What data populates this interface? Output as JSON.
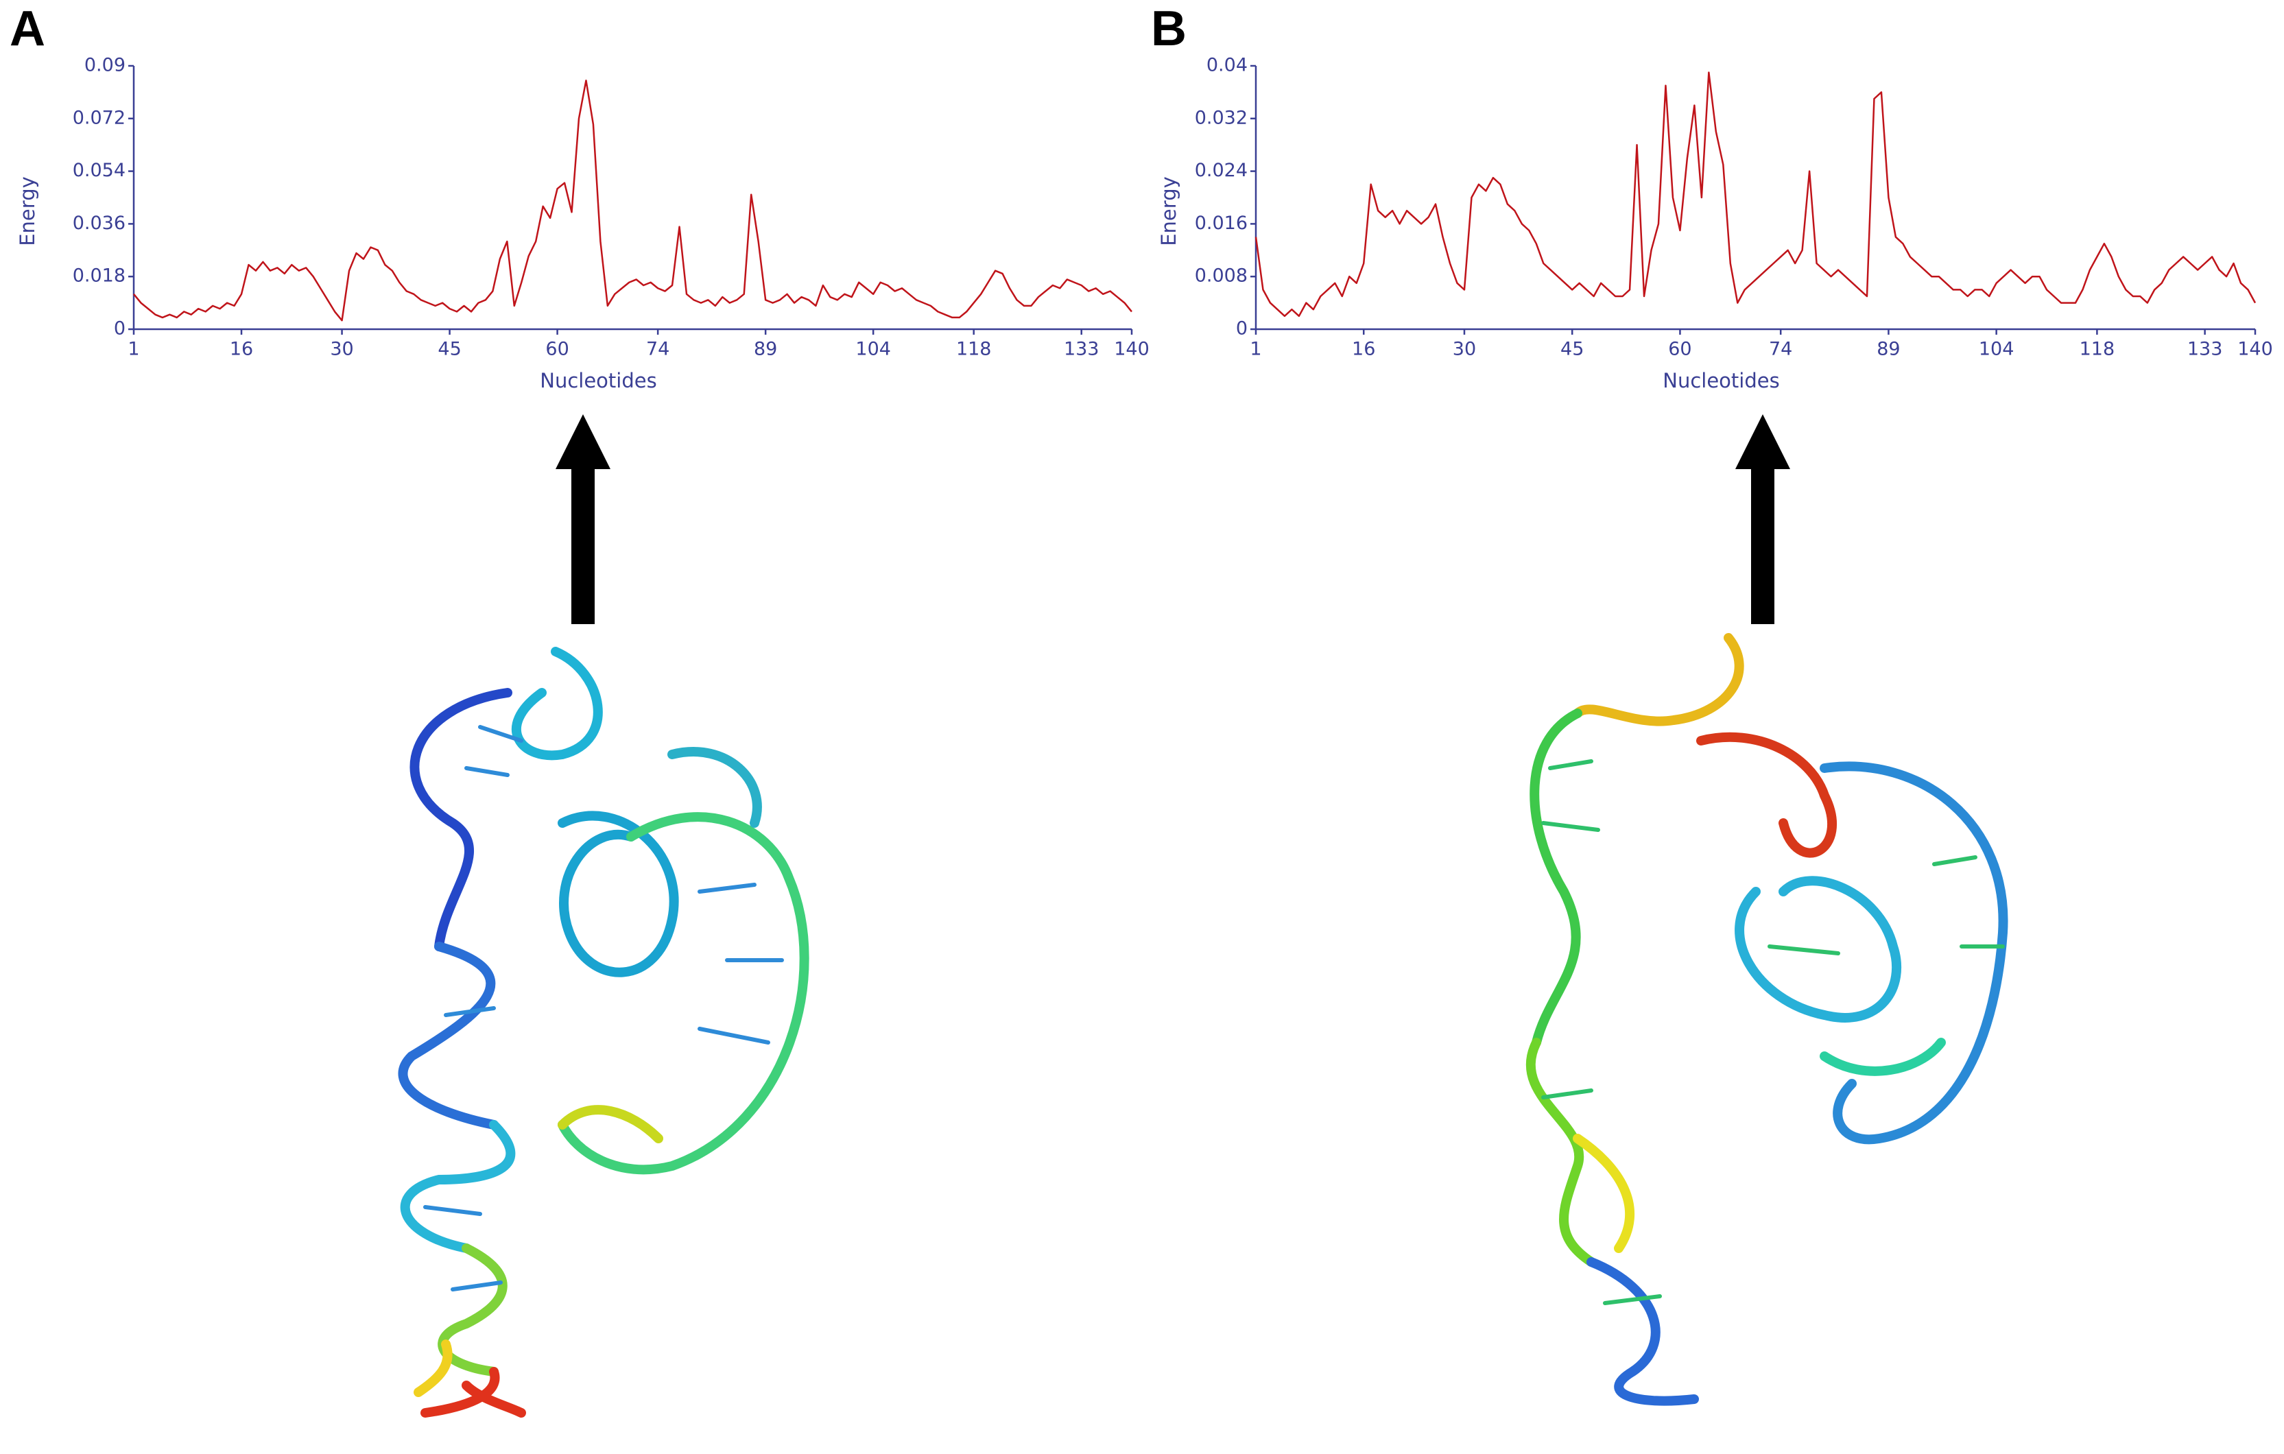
{
  "chart_data": [
    {
      "type": "line",
      "panel": "A",
      "ylabel": "Energy",
      "xlabel": "Nucleotides",
      "color": "#c0141a",
      "xlim": [
        1,
        140
      ],
      "xticks": [
        1,
        16,
        30,
        45,
        60,
        74,
        89,
        104,
        118,
        133,
        140
      ],
      "ylim": [
        0,
        0.09
      ],
      "yticks": [
        0,
        0.018,
        0.036,
        0.054,
        0.072,
        0.09
      ],
      "x": [
        1,
        2,
        3,
        4,
        5,
        6,
        7,
        8,
        9,
        10,
        11,
        12,
        13,
        14,
        15,
        16,
        17,
        18,
        19,
        20,
        21,
        22,
        23,
        24,
        25,
        26,
        27,
        28,
        29,
        30,
        31,
        32,
        33,
        34,
        35,
        36,
        37,
        38,
        39,
        40,
        41,
        42,
        43,
        44,
        45,
        46,
        47,
        48,
        49,
        50,
        51,
        52,
        53,
        54,
        55,
        56,
        57,
        58,
        59,
        60,
        61,
        62,
        63,
        64,
        65,
        66,
        67,
        68,
        69,
        70,
        71,
        72,
        73,
        74,
        75,
        76,
        77,
        78,
        79,
        80,
        81,
        82,
        83,
        84,
        85,
        86,
        87,
        88,
        89,
        90,
        91,
        92,
        93,
        94,
        95,
        96,
        97,
        98,
        99,
        100,
        101,
        102,
        103,
        104,
        105,
        106,
        107,
        108,
        109,
        110,
        111,
        112,
        113,
        114,
        115,
        116,
        117,
        118,
        119,
        120,
        121,
        122,
        123,
        124,
        125,
        126,
        127,
        128,
        129,
        130,
        131,
        132,
        133,
        134,
        135,
        136,
        137,
        138,
        139,
        140
      ],
      "values": [
        0.012,
        0.009,
        0.007,
        0.005,
        0.004,
        0.005,
        0.004,
        0.006,
        0.005,
        0.007,
        0.006,
        0.008,
        0.007,
        0.009,
        0.008,
        0.012,
        0.022,
        0.02,
        0.023,
        0.02,
        0.021,
        0.019,
        0.022,
        0.02,
        0.021,
        0.018,
        0.014,
        0.01,
        0.006,
        0.003,
        0.02,
        0.026,
        0.024,
        0.028,
        0.027,
        0.022,
        0.02,
        0.016,
        0.013,
        0.012,
        0.01,
        0.009,
        0.008,
        0.009,
        0.007,
        0.006,
        0.008,
        0.006,
        0.009,
        0.01,
        0.013,
        0.024,
        0.03,
        0.008,
        0.016,
        0.025,
        0.03,
        0.042,
        0.038,
        0.048,
        0.05,
        0.04,
        0.072,
        0.085,
        0.07,
        0.03,
        0.008,
        0.012,
        0.014,
        0.016,
        0.017,
        0.015,
        0.016,
        0.014,
        0.013,
        0.015,
        0.035,
        0.012,
        0.01,
        0.009,
        0.01,
        0.008,
        0.011,
        0.009,
        0.01,
        0.012,
        0.046,
        0.03,
        0.01,
        0.009,
        0.01,
        0.012,
        0.009,
        0.011,
        0.01,
        0.008,
        0.015,
        0.011,
        0.01,
        0.012,
        0.011,
        0.016,
        0.014,
        0.012,
        0.016,
        0.015,
        0.013,
        0.014,
        0.012,
        0.01,
        0.009,
        0.008,
        0.006,
        0.005,
        0.004,
        0.004,
        0.006,
        0.009,
        0.012,
        0.016,
        0.02,
        0.019,
        0.014,
        0.01,
        0.008,
        0.008,
        0.011,
        0.013,
        0.015,
        0.014,
        0.017,
        0.016,
        0.015,
        0.013,
        0.014,
        0.012,
        0.013,
        0.011,
        0.009,
        0.006
      ]
    },
    {
      "type": "line",
      "panel": "B",
      "ylabel": "Energy",
      "xlabel": "Nucleotides",
      "color": "#c0141a",
      "xlim": [
        1,
        140
      ],
      "xticks": [
        1,
        16,
        30,
        45,
        60,
        74,
        89,
        104,
        118,
        133,
        140
      ],
      "ylim": [
        0,
        0.04
      ],
      "yticks": [
        0,
        0.008,
        0.016,
        0.024,
        0.032,
        0.04
      ],
      "x": [
        1,
        2,
        3,
        4,
        5,
        6,
        7,
        8,
        9,
        10,
        11,
        12,
        13,
        14,
        15,
        16,
        17,
        18,
        19,
        20,
        21,
        22,
        23,
        24,
        25,
        26,
        27,
        28,
        29,
        30,
        31,
        32,
        33,
        34,
        35,
        36,
        37,
        38,
        39,
        40,
        41,
        42,
        43,
        44,
        45,
        46,
        47,
        48,
        49,
        50,
        51,
        52,
        53,
        54,
        55,
        56,
        57,
        58,
        59,
        60,
        61,
        62,
        63,
        64,
        65,
        66,
        67,
        68,
        69,
        70,
        71,
        72,
        73,
        74,
        75,
        76,
        77,
        78,
        79,
        80,
        81,
        82,
        83,
        84,
        85,
        86,
        87,
        88,
        89,
        90,
        91,
        92,
        93,
        94,
        95,
        96,
        97,
        98,
        99,
        100,
        101,
        102,
        103,
        104,
        105,
        106,
        107,
        108,
        109,
        110,
        111,
        112,
        113,
        114,
        115,
        116,
        117,
        118,
        119,
        120,
        121,
        122,
        123,
        124,
        125,
        126,
        127,
        128,
        129,
        130,
        131,
        132,
        133,
        134,
        135,
        136,
        137,
        138,
        139,
        140
      ],
      "values": [
        0.014,
        0.006,
        0.004,
        0.003,
        0.002,
        0.003,
        0.002,
        0.004,
        0.003,
        0.005,
        0.006,
        0.007,
        0.005,
        0.008,
        0.007,
        0.01,
        0.022,
        0.018,
        0.017,
        0.018,
        0.016,
        0.018,
        0.017,
        0.016,
        0.017,
        0.019,
        0.014,
        0.01,
        0.007,
        0.006,
        0.02,
        0.022,
        0.021,
        0.023,
        0.022,
        0.019,
        0.018,
        0.016,
        0.015,
        0.013,
        0.01,
        0.009,
        0.008,
        0.007,
        0.006,
        0.007,
        0.006,
        0.005,
        0.007,
        0.006,
        0.005,
        0.005,
        0.006,
        0.028,
        0.005,
        0.012,
        0.016,
        0.037,
        0.02,
        0.015,
        0.026,
        0.034,
        0.02,
        0.039,
        0.03,
        0.025,
        0.01,
        0.004,
        0.006,
        0.007,
        0.008,
        0.009,
        0.01,
        0.011,
        0.012,
        0.01,
        0.012,
        0.024,
        0.01,
        0.009,
        0.008,
        0.009,
        0.008,
        0.007,
        0.006,
        0.005,
        0.035,
        0.036,
        0.02,
        0.014,
        0.013,
        0.011,
        0.01,
        0.009,
        0.008,
        0.008,
        0.007,
        0.006,
        0.006,
        0.005,
        0.006,
        0.006,
        0.005,
        0.007,
        0.008,
        0.009,
        0.008,
        0.007,
        0.008,
        0.008,
        0.006,
        0.005,
        0.004,
        0.004,
        0.004,
        0.006,
        0.009,
        0.011,
        0.013,
        0.011,
        0.008,
        0.006,
        0.005,
        0.005,
        0.004,
        0.006,
        0.007,
        0.009,
        0.01,
        0.011,
        0.01,
        0.009,
        0.01,
        0.011,
        0.009,
        0.008,
        0.01,
        0.007,
        0.006,
        0.004
      ]
    }
  ]
}
